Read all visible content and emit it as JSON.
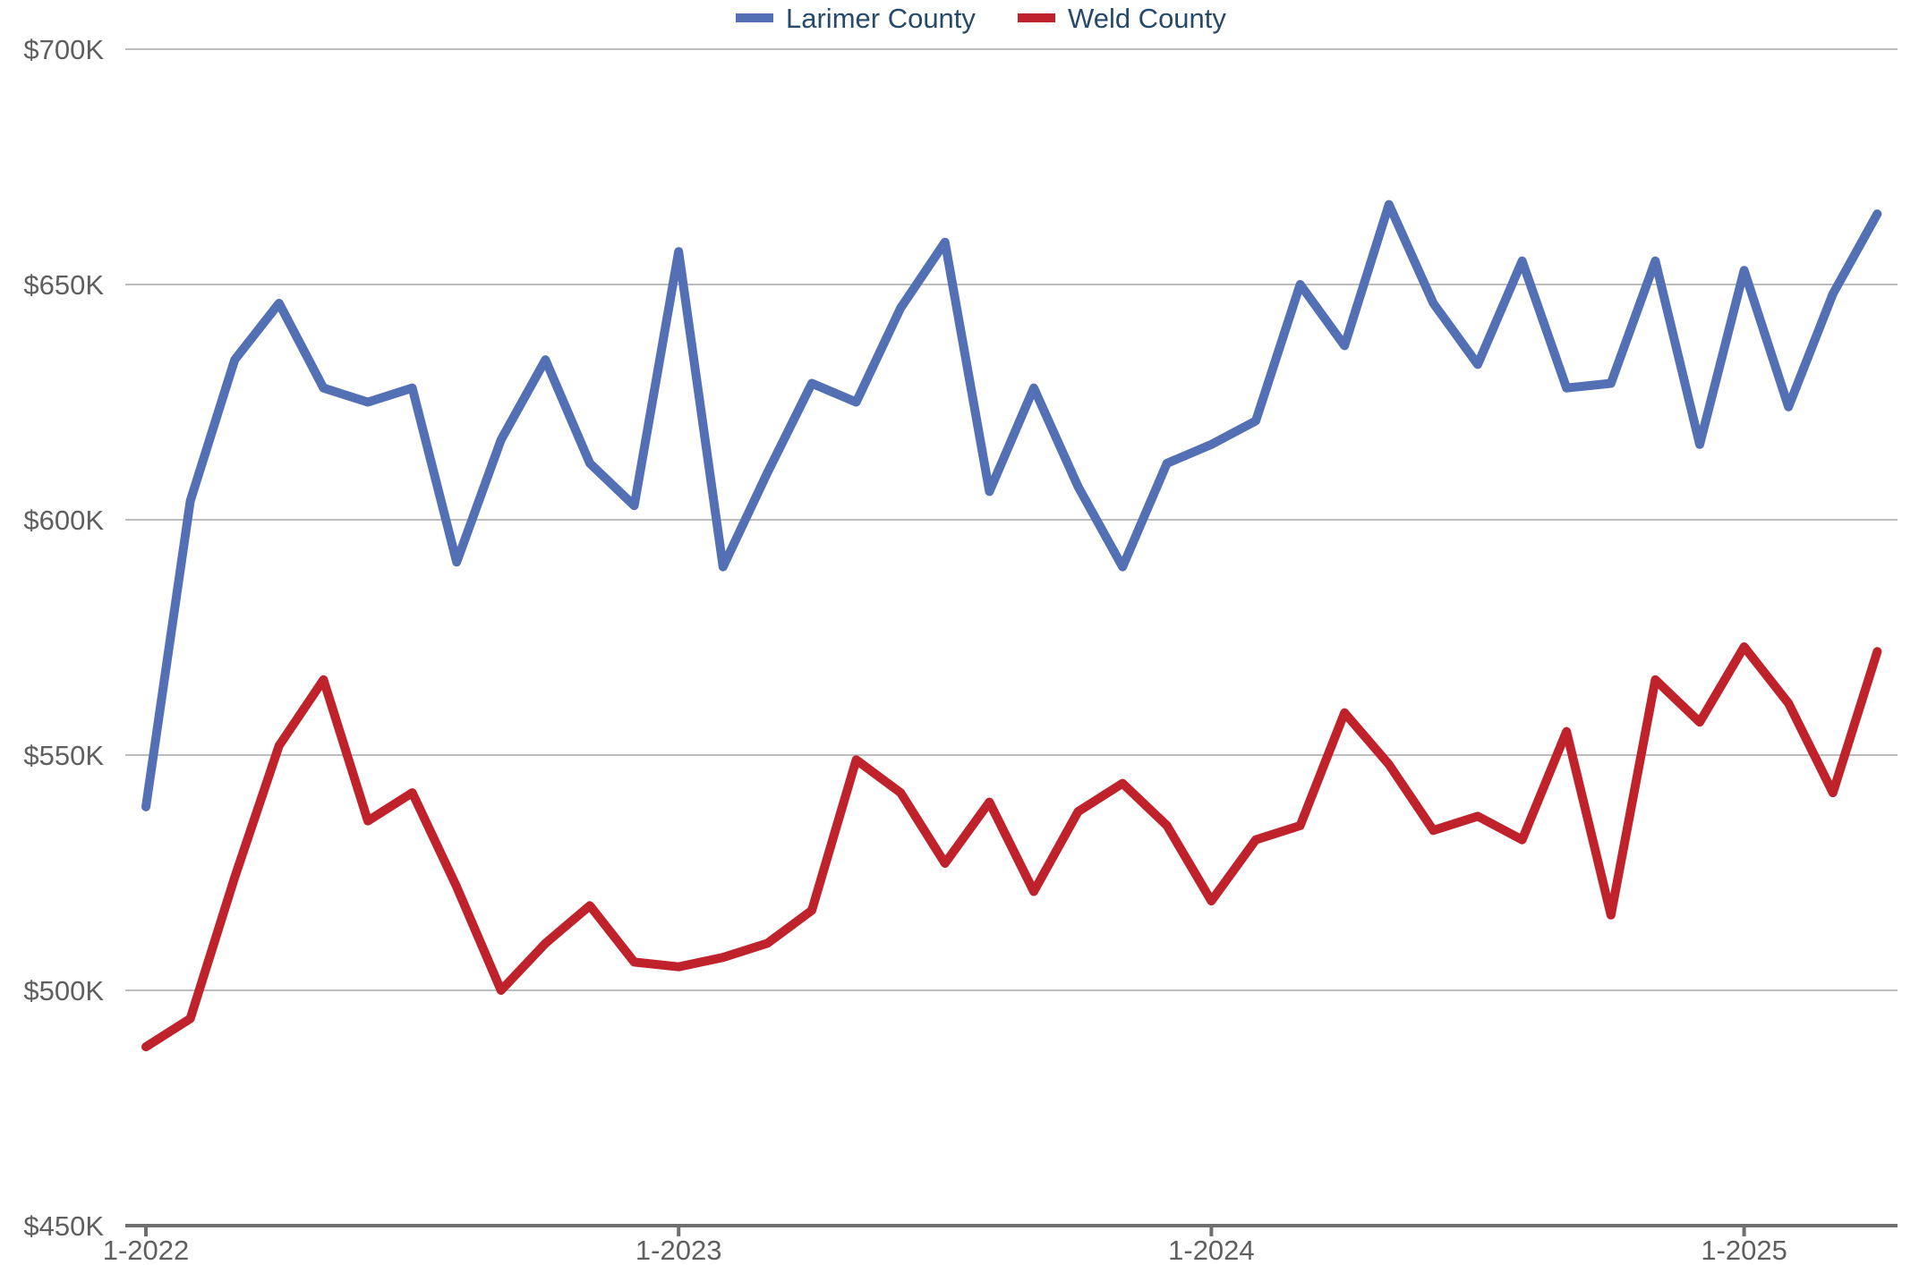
{
  "chart_data": {
    "type": "line",
    "x_tick_labels": [
      "1-2022",
      "1-2023",
      "1-2024",
      "1-2025"
    ],
    "y_tick_labels": [
      "$450K",
      "$500K",
      "$550K",
      "$600K",
      "$650K",
      "$700K"
    ],
    "ylim": [
      450000,
      700000
    ],
    "y_ticks": [
      450000,
      500000,
      550000,
      600000,
      650000,
      700000
    ],
    "x_range": [
      "2022-01",
      "2025-04"
    ],
    "grid": true,
    "legend_position": "top-center",
    "x": [
      "2022-01",
      "2022-02",
      "2022-03",
      "2022-04",
      "2022-05",
      "2022-06",
      "2022-07",
      "2022-08",
      "2022-09",
      "2022-10",
      "2022-11",
      "2022-12",
      "2023-01",
      "2023-02",
      "2023-03",
      "2023-04",
      "2023-05",
      "2023-06",
      "2023-07",
      "2023-08",
      "2023-09",
      "2023-10",
      "2023-11",
      "2023-12",
      "2024-01",
      "2024-02",
      "2024-03",
      "2024-04",
      "2024-05",
      "2024-06",
      "2024-07",
      "2024-08",
      "2024-09",
      "2024-10",
      "2024-11",
      "2024-12",
      "2025-01",
      "2025-02",
      "2025-03",
      "2025-04"
    ],
    "series": [
      {
        "name": "Larimer County",
        "color": "#5470b4",
        "values": [
          539000,
          604000,
          634000,
          646000,
          628000,
          625000,
          628000,
          591000,
          617000,
          634000,
          612000,
          603000,
          657000,
          590000,
          610000,
          629000,
          625000,
          645000,
          659000,
          606000,
          628000,
          607000,
          590000,
          612000,
          616000,
          621000,
          650000,
          637000,
          667000,
          646000,
          633000,
          655000,
          628000,
          629000,
          655000,
          616000,
          653000,
          624000,
          648000,
          665000
        ]
      },
      {
        "name": "Weld County",
        "color": "#c0222b",
        "values": [
          488000,
          494000,
          524000,
          552000,
          566000,
          536000,
          542000,
          522000,
          500000,
          510000,
          518000,
          506000,
          505000,
          507000,
          510000,
          517000,
          549000,
          542000,
          527000,
          540000,
          521000,
          538000,
          544000,
          535000,
          519000,
          532000,
          535000,
          559000,
          548000,
          534000,
          537000,
          532000,
          555000,
          516000,
          566000,
          557000,
          573000,
          561000,
          542000,
          572000
        ]
      }
    ]
  }
}
